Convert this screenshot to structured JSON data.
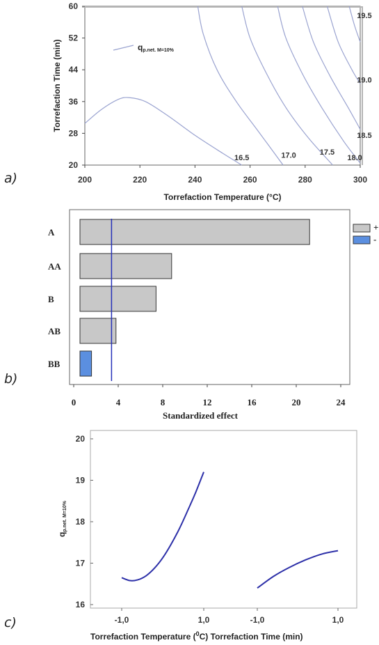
{
  "panels": {
    "a": "a)",
    "b": "b)",
    "c": "c)"
  },
  "chart_data": [
    {
      "id": "a",
      "type": "contour",
      "xlabel": "Torrefaction Temperature (°C)",
      "ylabel": "Torrefaction Time (min)",
      "xlim": [
        200,
        300
      ],
      "ylim": [
        20,
        60
      ],
      "xticks": [
        200,
        220,
        240,
        260,
        280,
        300
      ],
      "yticks": [
        20,
        28,
        36,
        44,
        52,
        60
      ],
      "legend": {
        "symbol": "q",
        "subscript": "p.net. M=10%"
      },
      "line_color": "#9aa3d0",
      "contours": [
        {
          "label": "16.5",
          "points": [
            [
              200,
              30.5
            ],
            [
              206,
              34
            ],
            [
              212,
              36.5
            ],
            [
              216,
              37
            ],
            [
              222,
              36
            ],
            [
              230,
              32.5
            ],
            [
              240,
              27.5
            ],
            [
              250,
              23
            ],
            [
              257,
              20
            ]
          ]
        },
        {
          "label": "17.0",
          "points": [
            [
              241,
              60
            ],
            [
              243,
              53
            ],
            [
              248,
              44
            ],
            [
              255,
              36
            ],
            [
              263,
              28.5
            ],
            [
              272,
              20
            ]
          ]
        },
        {
          "label": "17.5",
          "points": [
            [
              257,
              60
            ],
            [
              260,
              52
            ],
            [
              266,
              43
            ],
            [
              273,
              34.5
            ],
            [
              281,
              27
            ],
            [
              290,
              20
            ]
          ]
        },
        {
          "label": "18.0",
          "points": [
            [
              270,
              60
            ],
            [
              273,
              52
            ],
            [
              279,
              43
            ],
            [
              286,
              34.5
            ],
            [
              294,
              26
            ],
            [
              300,
              20.5
            ]
          ]
        },
        {
          "label": "18.5",
          "points": [
            [
              279,
              60
            ],
            [
              283,
              51
            ],
            [
              289,
              42.5
            ],
            [
              296,
              34
            ],
            [
              300,
              29
            ]
          ]
        },
        {
          "label": "19.0",
          "points": [
            [
              288,
              60
            ],
            [
              292,
              51
            ],
            [
              297,
              44
            ],
            [
              300,
              40.5
            ]
          ]
        },
        {
          "label": "19.5",
          "points": [
            [
              296,
              60
            ],
            [
              298,
              55
            ],
            [
              300,
              51
            ]
          ]
        }
      ],
      "contour_labels": [
        {
          "text": "16.5",
          "x": 257,
          "y": 21.2
        },
        {
          "text": "17.0",
          "x": 274,
          "y": 21.8
        },
        {
          "text": "17.5",
          "x": 288,
          "y": 22.6
        },
        {
          "text": "18.0",
          "x": 298,
          "y": 21.2
        },
        {
          "text": "18.5",
          "x": 301.5,
          "y": 26.8
        },
        {
          "text": "19.0",
          "x": 301.5,
          "y": 40.8
        },
        {
          "text": "19.5",
          "x": 301.5,
          "y": 57.0
        }
      ]
    },
    {
      "id": "b",
      "type": "bar",
      "orientation": "horizontal",
      "xlabel": "Standardized effect",
      "xlim": [
        0,
        24
      ],
      "xticks": [
        0,
        4,
        8,
        12,
        16,
        20,
        24
      ],
      "categories": [
        "A",
        "AA",
        "B",
        "AB",
        "BB"
      ],
      "values": [
        21.2,
        8.8,
        7.4,
        3.8,
        1.6
      ],
      "signs": [
        "+",
        "+",
        "+",
        "+",
        "-"
      ],
      "reference_line": 3.4,
      "colors": {
        "+": "#c8c8c8",
        "-": "#5b8fe0",
        "ref": "#2530b8"
      },
      "legend": [
        {
          "sign": "+",
          "label": "+"
        },
        {
          "sign": "-",
          "label": "-"
        }
      ]
    },
    {
      "id": "c",
      "type": "line",
      "ylabel_symbol": "q",
      "ylabel_subscript": "p.net. M=10%",
      "ylim": [
        16,
        20
      ],
      "yticks": [
        16,
        17,
        18,
        19,
        20
      ],
      "xticks": [
        "-1,0",
        "1,0",
        "-1,0",
        "1,0"
      ],
      "xlabel_left": "Torrefaction Temperature",
      "xlabel_unit_pre": "(",
      "xlabel_unit_sup": "0",
      "xlabel_unit_post": "C)",
      "xlabel_right": "Torrefaction Time (min)",
      "line_color": "#2c2fa8",
      "series": [
        {
          "factor": "temperature",
          "x": [
            -1.0,
            -0.8,
            -0.6,
            -0.4,
            -0.2,
            0.0,
            0.2,
            0.4,
            0.6,
            0.8,
            1.0
          ],
          "y": [
            16.65,
            16.58,
            16.6,
            16.7,
            16.88,
            17.13,
            17.45,
            17.82,
            18.25,
            18.7,
            19.2
          ]
        },
        {
          "factor": "time",
          "x": [
            -1.0,
            -0.6,
            -0.2,
            0.2,
            0.6,
            1.0
          ],
          "y": [
            16.4,
            16.68,
            16.9,
            17.08,
            17.22,
            17.3
          ]
        }
      ]
    }
  ]
}
